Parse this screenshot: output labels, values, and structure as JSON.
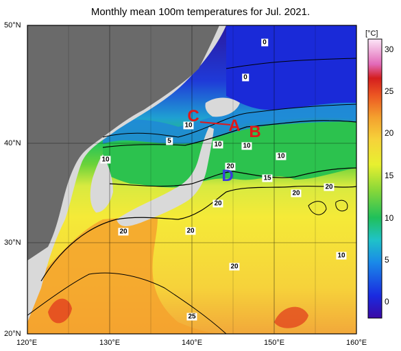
{
  "title": "Monthly mean 100m temperatures for Jul. 2021.",
  "map": {
    "lat_labels": [
      "50°N",
      "40°N",
      "30°N",
      "20°N"
    ],
    "lon_labels": [
      "120°E",
      "130°E",
      "140°E",
      "150°E",
      "160°E"
    ],
    "extent": {
      "lon": [
        120,
        160
      ],
      "lat": [
        20,
        50
      ]
    },
    "projection": "mercator",
    "grid": true,
    "land_color": "#d9d9d9",
    "sea_ice_or_nodata_color": "#6a6a6a"
  },
  "colorbar": {
    "units": "[°C]",
    "ticks": [
      "30",
      "25",
      "20",
      "15",
      "10",
      "5",
      "0"
    ],
    "range": [
      -2,
      32
    ],
    "colors": [
      "#3a0aa5",
      "#1a3aea",
      "#1d8fe0",
      "#1fbfc6",
      "#20c05a",
      "#6ad23a",
      "#c8e632",
      "#f5f02a",
      "#f5c53a",
      "#f08a2a",
      "#e8401e",
      "#d21e1e",
      "#e87ac8",
      "#fbd8f4"
    ]
  },
  "contour_labels": [
    "0",
    "0",
    "10",
    "5",
    "10",
    "10",
    "10",
    "10",
    "20",
    "15",
    "20",
    "20",
    "20",
    "20",
    "20",
    "20",
    "25",
    "10"
  ],
  "markers": [
    "C",
    "A",
    "B",
    "D"
  ],
  "marker_colors": {
    "C": "#e01818",
    "A": "#e01818",
    "B": "#e01818",
    "D": "#3a3adc"
  }
}
